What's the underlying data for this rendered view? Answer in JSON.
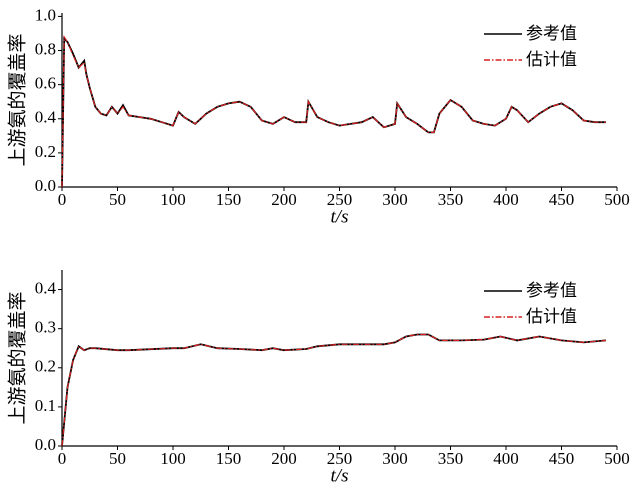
{
  "chart_data": [
    {
      "type": "line",
      "xlabel": "t/s",
      "ylabel": "上游氨的覆盖率",
      "x": [
        0,
        2,
        5,
        10,
        15,
        20,
        22,
        25,
        30,
        35,
        40,
        45,
        50,
        55,
        60,
        70,
        80,
        90,
        100,
        105,
        110,
        120,
        130,
        140,
        150,
        160,
        170,
        180,
        190,
        200,
        210,
        220,
        222,
        230,
        240,
        250,
        260,
        270,
        280,
        290,
        300,
        302,
        310,
        320,
        330,
        335,
        340,
        350,
        360,
        370,
        380,
        390,
        400,
        405,
        410,
        420,
        430,
        440,
        450,
        460,
        470,
        480,
        490
      ],
      "series": [
        {
          "name": "参考值",
          "color": "#000000",
          "dash": "solid",
          "values": [
            0,
            0.87,
            0.85,
            0.78,
            0.7,
            0.74,
            0.66,
            0.58,
            0.47,
            0.43,
            0.42,
            0.47,
            0.43,
            0.48,
            0.42,
            0.41,
            0.4,
            0.38,
            0.36,
            0.44,
            0.41,
            0.37,
            0.43,
            0.47,
            0.49,
            0.5,
            0.47,
            0.39,
            0.37,
            0.41,
            0.38,
            0.38,
            0.5,
            0.41,
            0.38,
            0.36,
            0.37,
            0.38,
            0.41,
            0.35,
            0.37,
            0.49,
            0.41,
            0.37,
            0.32,
            0.32,
            0.43,
            0.51,
            0.47,
            0.39,
            0.37,
            0.36,
            0.4,
            0.47,
            0.45,
            0.38,
            0.43,
            0.47,
            0.49,
            0.45,
            0.39,
            0.38,
            0.38
          ]
        },
        {
          "name": "估计值",
          "color": "#d62020",
          "dash": "dashdot",
          "values": [
            0,
            0.88,
            0.85,
            0.77,
            0.7,
            0.73,
            0.66,
            0.58,
            0.47,
            0.43,
            0.42,
            0.47,
            0.43,
            0.47,
            0.42,
            0.41,
            0.4,
            0.38,
            0.36,
            0.44,
            0.41,
            0.37,
            0.43,
            0.47,
            0.49,
            0.5,
            0.47,
            0.39,
            0.37,
            0.41,
            0.38,
            0.38,
            0.5,
            0.41,
            0.38,
            0.36,
            0.37,
            0.38,
            0.41,
            0.35,
            0.37,
            0.49,
            0.41,
            0.37,
            0.32,
            0.32,
            0.43,
            0.51,
            0.47,
            0.39,
            0.37,
            0.36,
            0.4,
            0.47,
            0.45,
            0.38,
            0.43,
            0.47,
            0.49,
            0.45,
            0.39,
            0.38,
            0.38
          ]
        }
      ],
      "xlim": [
        0,
        500
      ],
      "xticks": [
        0,
        50,
        100,
        150,
        200,
        250,
        300,
        350,
        400,
        450,
        500
      ],
      "ylim": [
        0,
        1.02
      ],
      "yticks": [
        {
          "value": 0,
          "label": "0.0"
        },
        {
          "value": 0.2,
          "label": "0.2"
        },
        {
          "value": 0.4,
          "label": "0.4"
        },
        {
          "value": 0.6,
          "label": "0.6"
        },
        {
          "value": 0.8,
          "label": "0.8"
        },
        {
          "value": 1,
          "label": "1.0"
        }
      ],
      "legend": "upper right"
    },
    {
      "type": "line",
      "xlabel": "t/s",
      "ylabel": "上游氨的覆盖率",
      "x": [
        0,
        5,
        10,
        15,
        20,
        25,
        30,
        50,
        60,
        100,
        110,
        125,
        140,
        160,
        180,
        190,
        200,
        220,
        230,
        250,
        270,
        290,
        300,
        310,
        320,
        330,
        340,
        360,
        380,
        395,
        410,
        430,
        450,
        470,
        490
      ],
      "series": [
        {
          "name": "参考值",
          "color": "#000000",
          "dash": "solid",
          "values": [
            0,
            0.15,
            0.22,
            0.255,
            0.245,
            0.25,
            0.25,
            0.245,
            0.245,
            0.25,
            0.25,
            0.26,
            0.25,
            0.248,
            0.245,
            0.25,
            0.245,
            0.248,
            0.255,
            0.26,
            0.26,
            0.26,
            0.265,
            0.28,
            0.285,
            0.285,
            0.27,
            0.27,
            0.272,
            0.28,
            0.27,
            0.28,
            0.27,
            0.265,
            0.27
          ]
        },
        {
          "name": "估计值",
          "color": "#d62020",
          "dash": "dashdot",
          "values": [
            0,
            0.15,
            0.22,
            0.255,
            0.245,
            0.25,
            0.25,
            0.245,
            0.245,
            0.25,
            0.25,
            0.26,
            0.25,
            0.248,
            0.245,
            0.25,
            0.245,
            0.248,
            0.255,
            0.26,
            0.26,
            0.26,
            0.265,
            0.28,
            0.285,
            0.285,
            0.27,
            0.27,
            0.272,
            0.28,
            0.27,
            0.28,
            0.27,
            0.265,
            0.27
          ]
        }
      ],
      "xlim": [
        0,
        500
      ],
      "xticks": [
        0,
        50,
        100,
        150,
        200,
        250,
        300,
        350,
        400,
        450,
        500
      ],
      "ylim": [
        0,
        0.45
      ],
      "yticks": [
        {
          "value": 0,
          "label": "0.0"
        },
        {
          "value": 0.1,
          "label": "0.1"
        },
        {
          "value": 0.2,
          "label": "0.2"
        },
        {
          "value": 0.3,
          "label": "0.3"
        },
        {
          "value": 0.4,
          "label": "0.4"
        }
      ],
      "legend": "upper right"
    }
  ]
}
